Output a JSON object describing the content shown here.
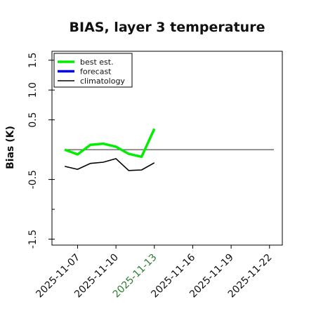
{
  "chart_data": {
    "type": "line",
    "title": "BIAS, layer 3 temperature",
    "xlabel": "",
    "ylabel": "Bias (K)",
    "ylim": [
      -1.6,
      1.65
    ],
    "y_ticks": [
      -1.5,
      -0.5,
      0.5,
      1.0,
      1.5
    ],
    "y_tick_labels": [
      "-1.5",
      "-0.5",
      "0.5",
      "1.0",
      "1.5"
    ],
    "x_ticks": [
      "2025-11-07",
      "2025-11-10",
      "2025-11-13",
      "2025-11-16",
      "2025-11-19",
      "2025-11-22"
    ],
    "x_tick_colors": [
      "#111111",
      "#111111",
      "#2e7d32",
      "#111111",
      "#111111",
      "#111111"
    ],
    "xlim": [
      "2025-11-05",
      "2025-11-23"
    ],
    "reference_line": 0.0,
    "grid": false,
    "legend_position": "top-left",
    "series": [
      {
        "name": "best est.",
        "color": "#00ee00",
        "x": [
          "2025-11-06",
          "2025-11-07",
          "2025-11-08",
          "2025-11-09",
          "2025-11-10",
          "2025-11-11",
          "2025-11-12",
          "2025-11-13"
        ],
        "values": [
          0.0,
          -0.08,
          0.08,
          0.1,
          0.05,
          -0.07,
          -0.12,
          0.35
        ]
      },
      {
        "name": "forecast",
        "color": "#0000ee",
        "x": [],
        "values": []
      },
      {
        "name": "climatology",
        "color": "#000000",
        "x": [
          "2025-11-06",
          "2025-11-07",
          "2025-11-08",
          "2025-11-09",
          "2025-11-10",
          "2025-11-11",
          "2025-11-12",
          "2025-11-13"
        ],
        "values": [
          -0.28,
          -0.33,
          -0.23,
          -0.21,
          -0.15,
          -0.35,
          -0.34,
          -0.22
        ]
      }
    ]
  }
}
